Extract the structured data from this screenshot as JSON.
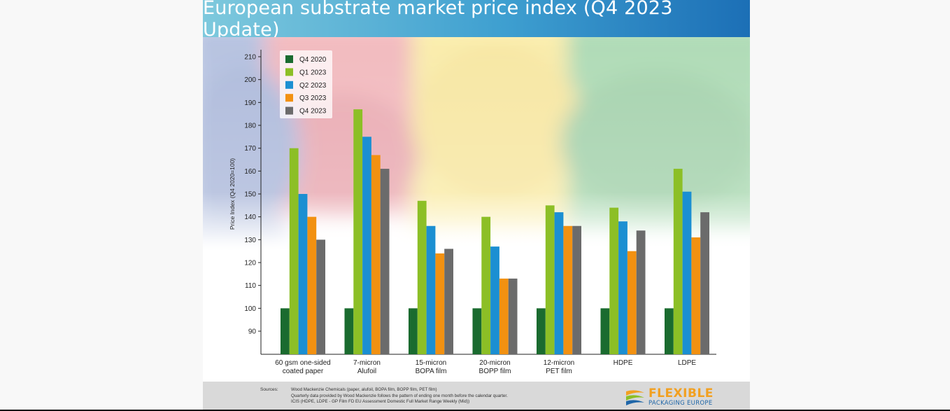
{
  "title": "European substrate market price index (Q4 2023 Update)",
  "chart_data": {
    "type": "bar",
    "title": "",
    "xlabel": "",
    "ylabel": "Price Index (Q4 2020=100)",
    "ylim": [
      80,
      210
    ],
    "yticks": [
      90,
      100,
      110,
      120,
      130,
      140,
      150,
      160,
      170,
      180,
      190,
      200,
      210
    ],
    "grid": false,
    "legend_position": "top-left",
    "categories": [
      [
        "60 gsm one-sided",
        "coated paper"
      ],
      [
        "7-micron",
        "Alufoil"
      ],
      [
        "15-micron",
        "BOPA film"
      ],
      [
        "20-micron",
        "BOPP film"
      ],
      [
        "12-micron",
        "PET film"
      ],
      [
        "HDPE"
      ],
      [
        "LDPE"
      ]
    ],
    "series": [
      {
        "name": "Q4 2020",
        "color": "#1a6b2f",
        "values": [
          100,
          100,
          100,
          100,
          100,
          100,
          100
        ]
      },
      {
        "name": "Q1 2023",
        "color": "#8cbf26",
        "values": [
          170,
          187,
          147,
          140,
          145,
          144,
          161
        ]
      },
      {
        "name": "Q2 2023",
        "color": "#1b8fd2",
        "values": [
          150,
          175,
          136,
          127,
          142,
          138,
          151
        ]
      },
      {
        "name": "Q3 2023",
        "color": "#f29111",
        "values": [
          140,
          167,
          124,
          113,
          136,
          125,
          131
        ]
      },
      {
        "name": "Q4 2023",
        "color": "#6b6b6b",
        "values": [
          130,
          161,
          126,
          113,
          136,
          134,
          142
        ]
      }
    ]
  },
  "footer": {
    "sources_label": "Sources:",
    "lines": [
      "Wood Mackenzie Chemicals (paper, alufoil, BOPA film, BOPP film, PET film)",
      "Quarterly data provided by Wood Mackenzie follows the pattern of ending one month before the calendar quarter.",
      "ICIS (HDPE, LDPE - GP Film FD EU Assessment Domestic Full Market Range Weekly (Mid))"
    ]
  },
  "logo": {
    "line1": "FLEXIBLE",
    "line2": "PACKAGING EUROPE"
  }
}
